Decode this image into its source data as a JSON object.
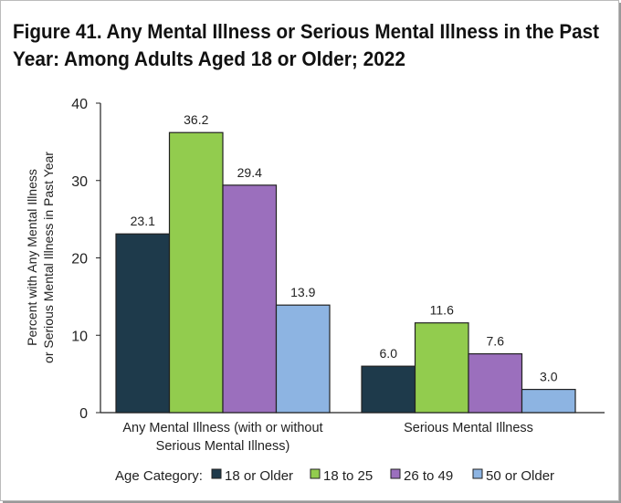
{
  "chart_data": {
    "type": "bar",
    "title_lines": [
      "Figure 41. Any Mental Illness or Serious Mental Illness in the Past",
      "Year: Among Adults Aged 18 or Older; 2022"
    ],
    "ylabel_lines": [
      "Percent with Any Mental Illness",
      "or Serious Mental Illness in Past Year"
    ],
    "xlabel": "",
    "ylim": [
      0,
      40
    ],
    "yticks": [
      0,
      10,
      20,
      30,
      40
    ],
    "grid": false,
    "categories": [
      {
        "lines": [
          "Any Mental Illness (with or without",
          "Serious Mental Illness)"
        ]
      },
      {
        "lines": [
          "Serious Mental Illness"
        ]
      }
    ],
    "legend_title": "Age Category:",
    "legend_placement": "bottom",
    "series": [
      {
        "name": "18 or Older",
        "color": "#1e3a4b",
        "values": [
          23.1,
          6.0
        ]
      },
      {
        "name": "18 to 25",
        "color": "#92cc4e",
        "values": [
          36.2,
          11.6
        ]
      },
      {
        "name": "26 to 49",
        "color": "#9b6fbd",
        "values": [
          29.4,
          7.6
        ]
      },
      {
        "name": "50 or Older",
        "color": "#8db4e2",
        "values": [
          13.9,
          3.0
        ]
      }
    ],
    "data_labels": [
      [
        "23.1",
        "6.0"
      ],
      [
        "36.2",
        "11.6"
      ],
      [
        "29.4",
        "7.6"
      ],
      [
        "13.9",
        "3.0"
      ]
    ]
  }
}
